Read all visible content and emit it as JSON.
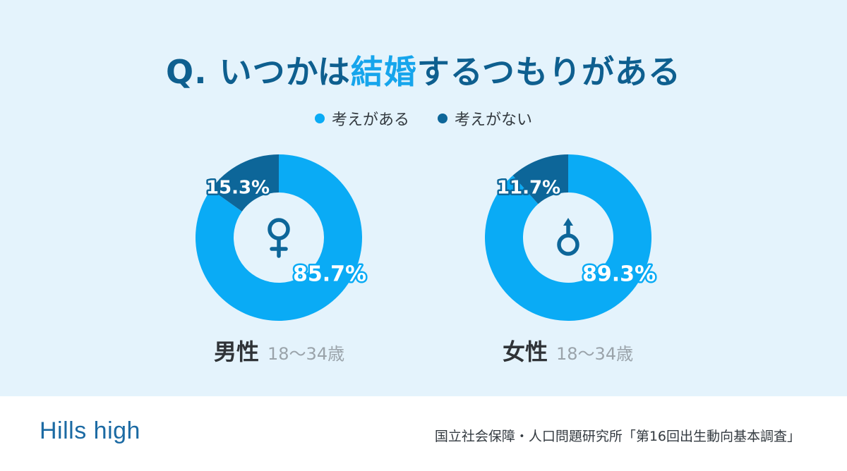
{
  "title": {
    "prefix": "Q. いつかは",
    "highlight": "結婚",
    "suffix": "するつもりがある"
  },
  "legend": [
    {
      "label": "考えがある",
      "color": "#0aabf5"
    },
    {
      "label": "考えがない",
      "color": "#0d6699"
    }
  ],
  "chart_data": [
    {
      "type": "pie",
      "group": "男性",
      "age_range": "18〜34歳",
      "icon": "female-symbol-icon",
      "slices": [
        {
          "name": "考えがある",
          "value": 85.7,
          "label": "85.7%",
          "color": "#0aabf5"
        },
        {
          "name": "考えがない",
          "value": 15.3,
          "label": "15.3%",
          "color": "#0d6699"
        }
      ]
    },
    {
      "type": "pie",
      "group": "女性",
      "age_range": "18〜34歳",
      "icon": "male-symbol-icon",
      "slices": [
        {
          "name": "考えがある",
          "value": 89.3,
          "label": "89.3%",
          "color": "#0aabf5"
        },
        {
          "name": "考えがない",
          "value": 11.7,
          "label": "11.7%",
          "color": "#0d6699"
        }
      ]
    }
  ],
  "footer": {
    "logo": "Hills high",
    "source": "国立社会保障・人口問題研究所「第16回出生動向基本調査」"
  }
}
